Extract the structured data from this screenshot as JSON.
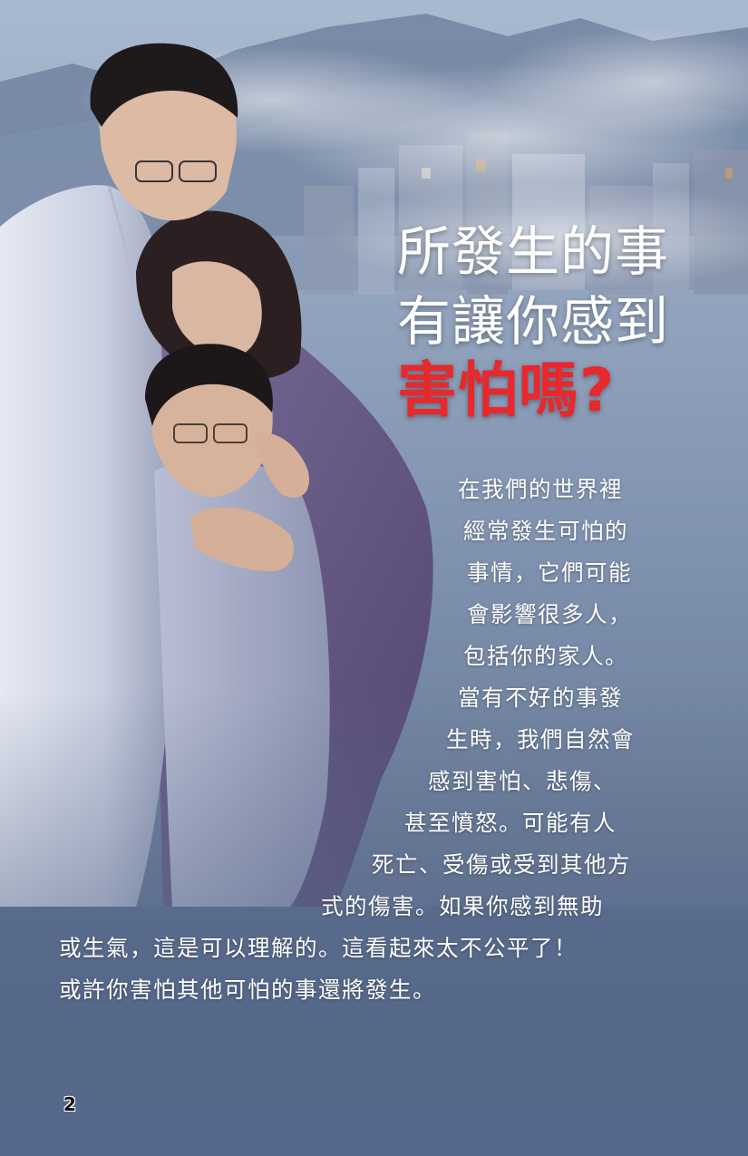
{
  "title": {
    "line1": "所發生的事",
    "line2": "有讓你感到",
    "line3": "害怕嗎?"
  },
  "body_lines": [
    "在我們的世界裡",
    "經常發生可怕的",
    "事情，它們可能",
    "會影響很多人，",
    "包括你的家人。",
    "當有不好的事發",
    "生時，我們自然會",
    "感到害怕、悲傷、",
    "甚至憤怒。可能有人",
    "死亡、受傷或受到其他方",
    "式的傷害。如果你感到無助",
    "或生氣，這是可以理解的。這看起來太不公平了！",
    "或許你害怕其他可怕的事還將發生。"
  ],
  "page_number": "2",
  "colors": {
    "title_text": "#ffffff",
    "title_accent": "#e8282c",
    "body_text": "#ffffff",
    "background": "#6f82a0"
  }
}
